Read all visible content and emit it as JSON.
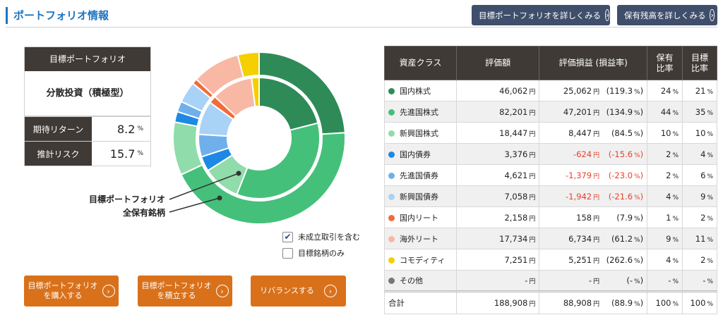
{
  "header": {
    "title": "ポートフォリオ情報",
    "btn_target": "目標ポートフォリオを詳しくみる",
    "btn_holdings": "保有残高を詳しくみる"
  },
  "target": {
    "heading": "目標ポートフォリオ",
    "name": "分散投資（積極型）",
    "expected_return_label": "期待リターン",
    "expected_return_value": "8.2",
    "risk_label": "推計リスク",
    "risk_value": "15.7",
    "unit": "%"
  },
  "chart_data": {
    "type": "pie",
    "inner_label": "目標ポートフォリオ",
    "outer_label": "全保有銘柄",
    "categories": [
      "国内株式",
      "先進国株式",
      "新興国株式",
      "国内債券",
      "先進国債券",
      "新興国債券",
      "国内リート",
      "海外リート",
      "コモディティ",
      "その他"
    ],
    "colors": [
      "#2e8b57",
      "#45c07a",
      "#90dcaa",
      "#1e88e5",
      "#6fb0ec",
      "#a9d2f7",
      "#f26b3a",
      "#f8b8a4",
      "#f5cf00",
      "#777777"
    ],
    "series": [
      {
        "name": "目標ポートフォリオ",
        "values": [
          21,
          35,
          10,
          4,
          6,
          9,
          2,
          11,
          2,
          0
        ]
      },
      {
        "name": "全保有銘柄",
        "values": [
          24,
          44,
          10,
          2,
          2,
          4,
          1,
          9,
          4,
          0
        ]
      }
    ]
  },
  "options": {
    "include_pending": "未成立取引を含む",
    "target_only": "目標銘柄のみ",
    "include_pending_checked": true
  },
  "actions": {
    "buy": [
      "目標ポートフォリオ",
      "を購入する"
    ],
    "accumulate": [
      "目標ポートフォリオ",
      "を積立する"
    ],
    "rebalance": "リバランスする"
  },
  "table": {
    "headers": {
      "asset_class": "資産クラス",
      "value": "評価額",
      "pl": "評価損益 (損益率)",
      "held": [
        "保有",
        "比率"
      ],
      "target": [
        "目標",
        "比率"
      ]
    },
    "unit_yen": "円",
    "unit_pct": "%",
    "rows": [
      {
        "name": "国内株式",
        "color": "#2e8b57",
        "value": "46,062",
        "pl": "25,062",
        "rate": "(119.3",
        "held": "24",
        "target": "21",
        "negative": false
      },
      {
        "name": "先進国株式",
        "color": "#45c07a",
        "value": "82,201",
        "pl": "47,201",
        "rate": "(134.9",
        "held": "44",
        "target": "35",
        "negative": false
      },
      {
        "name": "新興国株式",
        "color": "#90dcaa",
        "value": "18,447",
        "pl": "8,447",
        "rate": "(84.5",
        "held": "10",
        "target": "10",
        "negative": false
      },
      {
        "name": "国内債券",
        "color": "#1e88e5",
        "value": "3,376",
        "pl": "-624",
        "rate": "(-15.6",
        "held": "2",
        "target": "4",
        "negative": true
      },
      {
        "name": "先進国債券",
        "color": "#6fb0ec",
        "value": "4,621",
        "pl": "-1,379",
        "rate": "(-23.0",
        "held": "2",
        "target": "6",
        "negative": true
      },
      {
        "name": "新興国債券",
        "color": "#a9d2f7",
        "value": "7,058",
        "pl": "-1,942",
        "rate": "(-21.6",
        "held": "4",
        "target": "9",
        "negative": true
      },
      {
        "name": "国内リート",
        "color": "#f26b3a",
        "value": "2,158",
        "pl": "158",
        "rate": "(7.9",
        "held": "1",
        "target": "2",
        "negative": false
      },
      {
        "name": "海外リート",
        "color": "#f8b8a4",
        "value": "17,734",
        "pl": "6,734",
        "rate": "(61.2",
        "held": "9",
        "target": "11",
        "negative": false
      },
      {
        "name": "コモディティ",
        "color": "#f5cf00",
        "value": "7,251",
        "pl": "5,251",
        "rate": "(262.6",
        "held": "4",
        "target": "2",
        "negative": false
      },
      {
        "name": "その他",
        "color": "#777777",
        "value": "-",
        "pl": "-",
        "rate": "(-",
        "held": "-",
        "target": "-",
        "negative": false
      }
    ],
    "total": {
      "label": "合計",
      "value": "188,908",
      "pl": "88,908",
      "rate": "(88.9",
      "held": "100",
      "target": "100"
    }
  }
}
